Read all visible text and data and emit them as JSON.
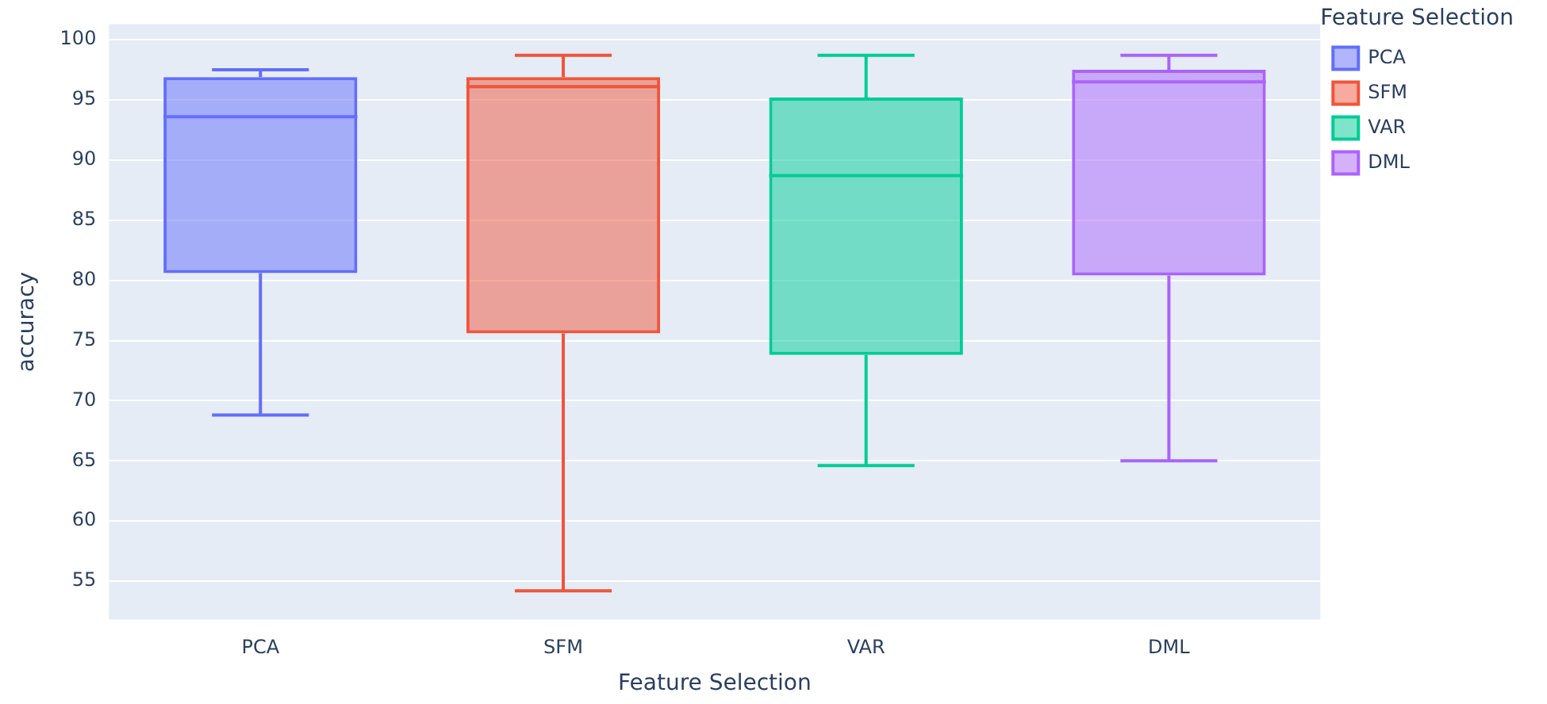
{
  "chart_data": {
    "type": "box",
    "xlabel": "Feature Selection",
    "ylabel": "accuracy",
    "legend_title": "Feature Selection",
    "legend": "top right",
    "grid": "y",
    "categories": [
      "PCA",
      "SFM",
      "VAR",
      "DML"
    ],
    "ylim": [
      51.8,
      101.3
    ],
    "yticks": [
      55,
      60,
      65,
      70,
      75,
      80,
      85,
      90,
      95,
      100
    ],
    "series": [
      {
        "name": "PCA",
        "color": "#636efa",
        "x": [
          "PCA"
        ],
        "boxes": [
          {
            "low": 68.8,
            "q1": 80.6,
            "median": 93.6,
            "q3": 96.9,
            "high": 97.5
          }
        ]
      },
      {
        "name": "SFM",
        "color": "#ef553b",
        "x": [
          "SFM"
        ],
        "boxes": [
          {
            "low": 54.2,
            "q1": 75.6,
            "median": 96.1,
            "q3": 96.9,
            "high": 98.7
          }
        ]
      },
      {
        "name": "VAR",
        "color": "#00cc96",
        "x": [
          "VAR"
        ],
        "boxes": [
          {
            "low": 64.6,
            "q1": 73.8,
            "median": 88.7,
            "q3": 95.2,
            "high": 98.7
          }
        ]
      },
      {
        "name": "DML",
        "color": "#ab63fa",
        "x": [
          "DML"
        ],
        "boxes": [
          {
            "low": 65.0,
            "q1": 80.4,
            "median": 96.5,
            "q3": 97.5,
            "high": 98.7
          }
        ]
      }
    ]
  }
}
